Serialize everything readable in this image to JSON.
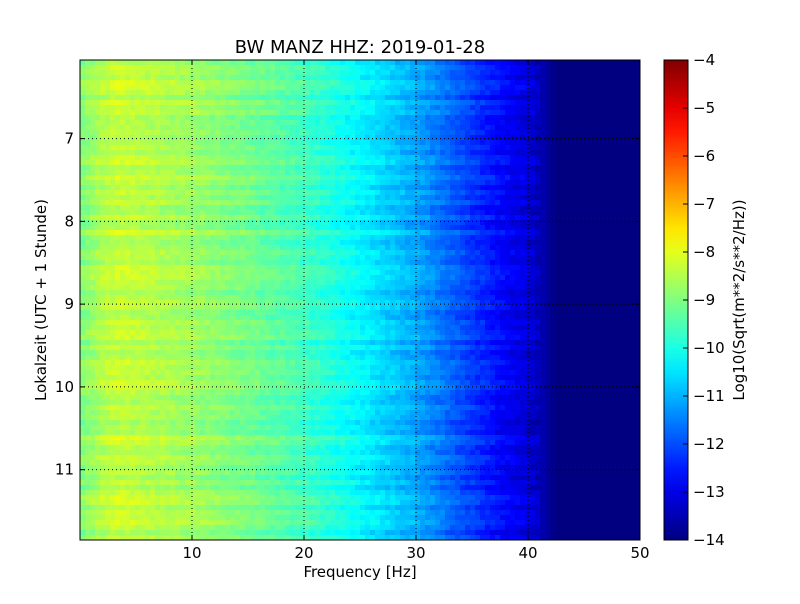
{
  "chart_data": {
    "type": "heatmap",
    "title": "BW MANZ HHZ: 2019-01-28",
    "xlabel": "Frequency [Hz]",
    "ylabel": "Lokalzeit (UTC + 1 Stunde)",
    "xlim": [
      0,
      50
    ],
    "ylim": [
      6.05,
      11.85
    ],
    "y_inverted": true,
    "xticks": [
      10,
      20,
      30,
      40,
      50
    ],
    "yticks": [
      7,
      8,
      9,
      10,
      11
    ],
    "grid": true,
    "colormap": "jet",
    "colorbar": {
      "label": "Log10(Sqrt(m**2/s**2/Hz))",
      "min": -14,
      "max": -4,
      "ticks": [
        -4,
        -5,
        -6,
        -7,
        -8,
        -9,
        -10,
        -11,
        -12,
        -13,
        -14
      ]
    },
    "profile": {
      "frequency_hz": [
        0,
        2,
        3.5,
        5,
        10,
        15,
        20,
        25,
        30,
        35,
        38,
        40,
        41.5,
        42.5,
        50
      ],
      "level": [
        -9.0,
        -8.5,
        -8.3,
        -8.4,
        -8.7,
        -9.1,
        -9.6,
        -10.3,
        -11.1,
        -12.2,
        -12.8,
        -13.1,
        -13.6,
        -14.0,
        -14.0
      ]
    }
  }
}
